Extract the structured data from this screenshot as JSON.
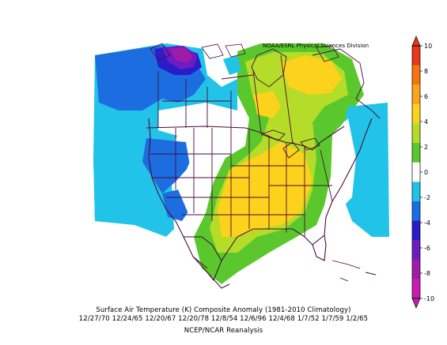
{
  "credit": "NOAA/ESRL Physical Sciences Division",
  "caption": {
    "title": "Surface Air Temperature (K) Composite Anomaly (1981-2010 Climatology)",
    "dates": "12/27/70 12/24/65 12/20/67 12/20/78 12/8/54 12/6/96 12/4/68 1/7/52 1/7/59 1/2/65",
    "source": "NCEP/NCAR Reanalysis"
  },
  "colorbar": {
    "ticks": [
      "10",
      "8",
      "6",
      "4",
      "2",
      "0",
      "-2",
      "-4",
      "-6",
      "-8",
      "-10"
    ],
    "colors": [
      "#e8361c",
      "#f5750f",
      "#fba41c",
      "#fcd21c",
      "#b4dc28",
      "#5ac82d",
      "#ffffff",
      "#21c4e8",
      "#1c6ee0",
      "#2a1cc8",
      "#6c1cc0",
      "#a01ca8",
      "#c81cb0"
    ]
  },
  "anomaly_colors": {
    "c_m10": "#c81cb0",
    "c_m8": "#a01ca8",
    "c_m6": "#6c1cc0",
    "c_m4": "#2a1cc8",
    "c_m2": "#1c6ee0",
    "c_m1": "#21c4e8",
    "c_0": "#ffffff",
    "c_1": "#5ac82d",
    "c_2": "#b4dc28",
    "c_4": "#fcd21c",
    "c_6": "#fba41c"
  },
  "boundary_color": "#4a0a3c"
}
